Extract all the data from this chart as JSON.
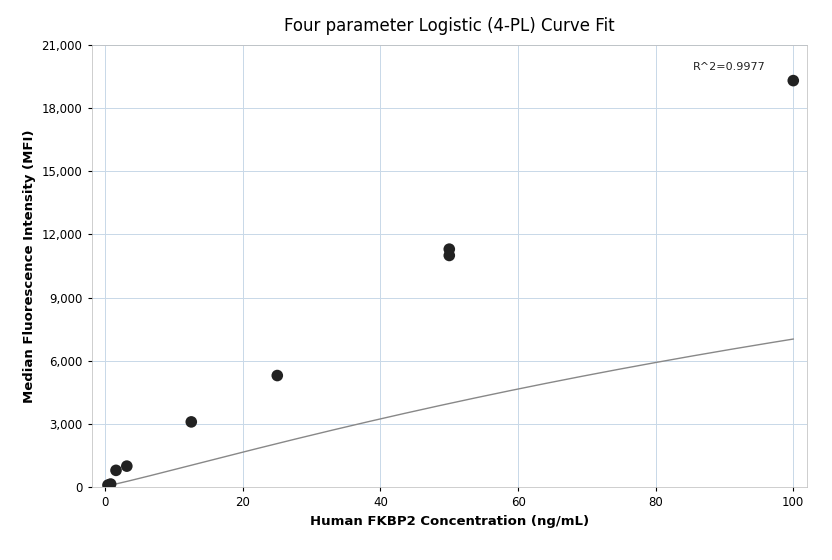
{
  "title": "Four parameter Logistic (4-PL) Curve Fit",
  "xlabel": "Human FKBP2 Concentration (ng/mL)",
  "ylabel": "Median Fluorescence Intensity (MFI)",
  "r_squared": "R^2=0.9977",
  "data_points": [
    [
      0.39,
      100
    ],
    [
      0.78,
      150
    ],
    [
      1.56,
      800
    ],
    [
      3.13,
      1000
    ],
    [
      12.5,
      3100
    ],
    [
      25.0,
      5300
    ],
    [
      50.0,
      11000
    ],
    [
      50.0,
      11300
    ],
    [
      100.0,
      19300
    ]
  ],
  "xlim": [
    -2,
    102
  ],
  "ylim": [
    0,
    21000
  ],
  "yticks": [
    0,
    3000,
    6000,
    9000,
    12000,
    15000,
    18000,
    21000
  ],
  "xticks": [
    0,
    20,
    40,
    60,
    80,
    100
  ],
  "curve_color": "#888888",
  "point_color": "#222222",
  "point_size": 70,
  "grid_color": "#c8d8e8",
  "background_color": "#ffffff",
  "title_fontsize": 12,
  "label_fontsize": 9.5,
  "tick_fontsize": 8.5,
  "annotation_fontsize": 8,
  "figsize": [
    8.32,
    5.6
  ],
  "dpi": 100
}
